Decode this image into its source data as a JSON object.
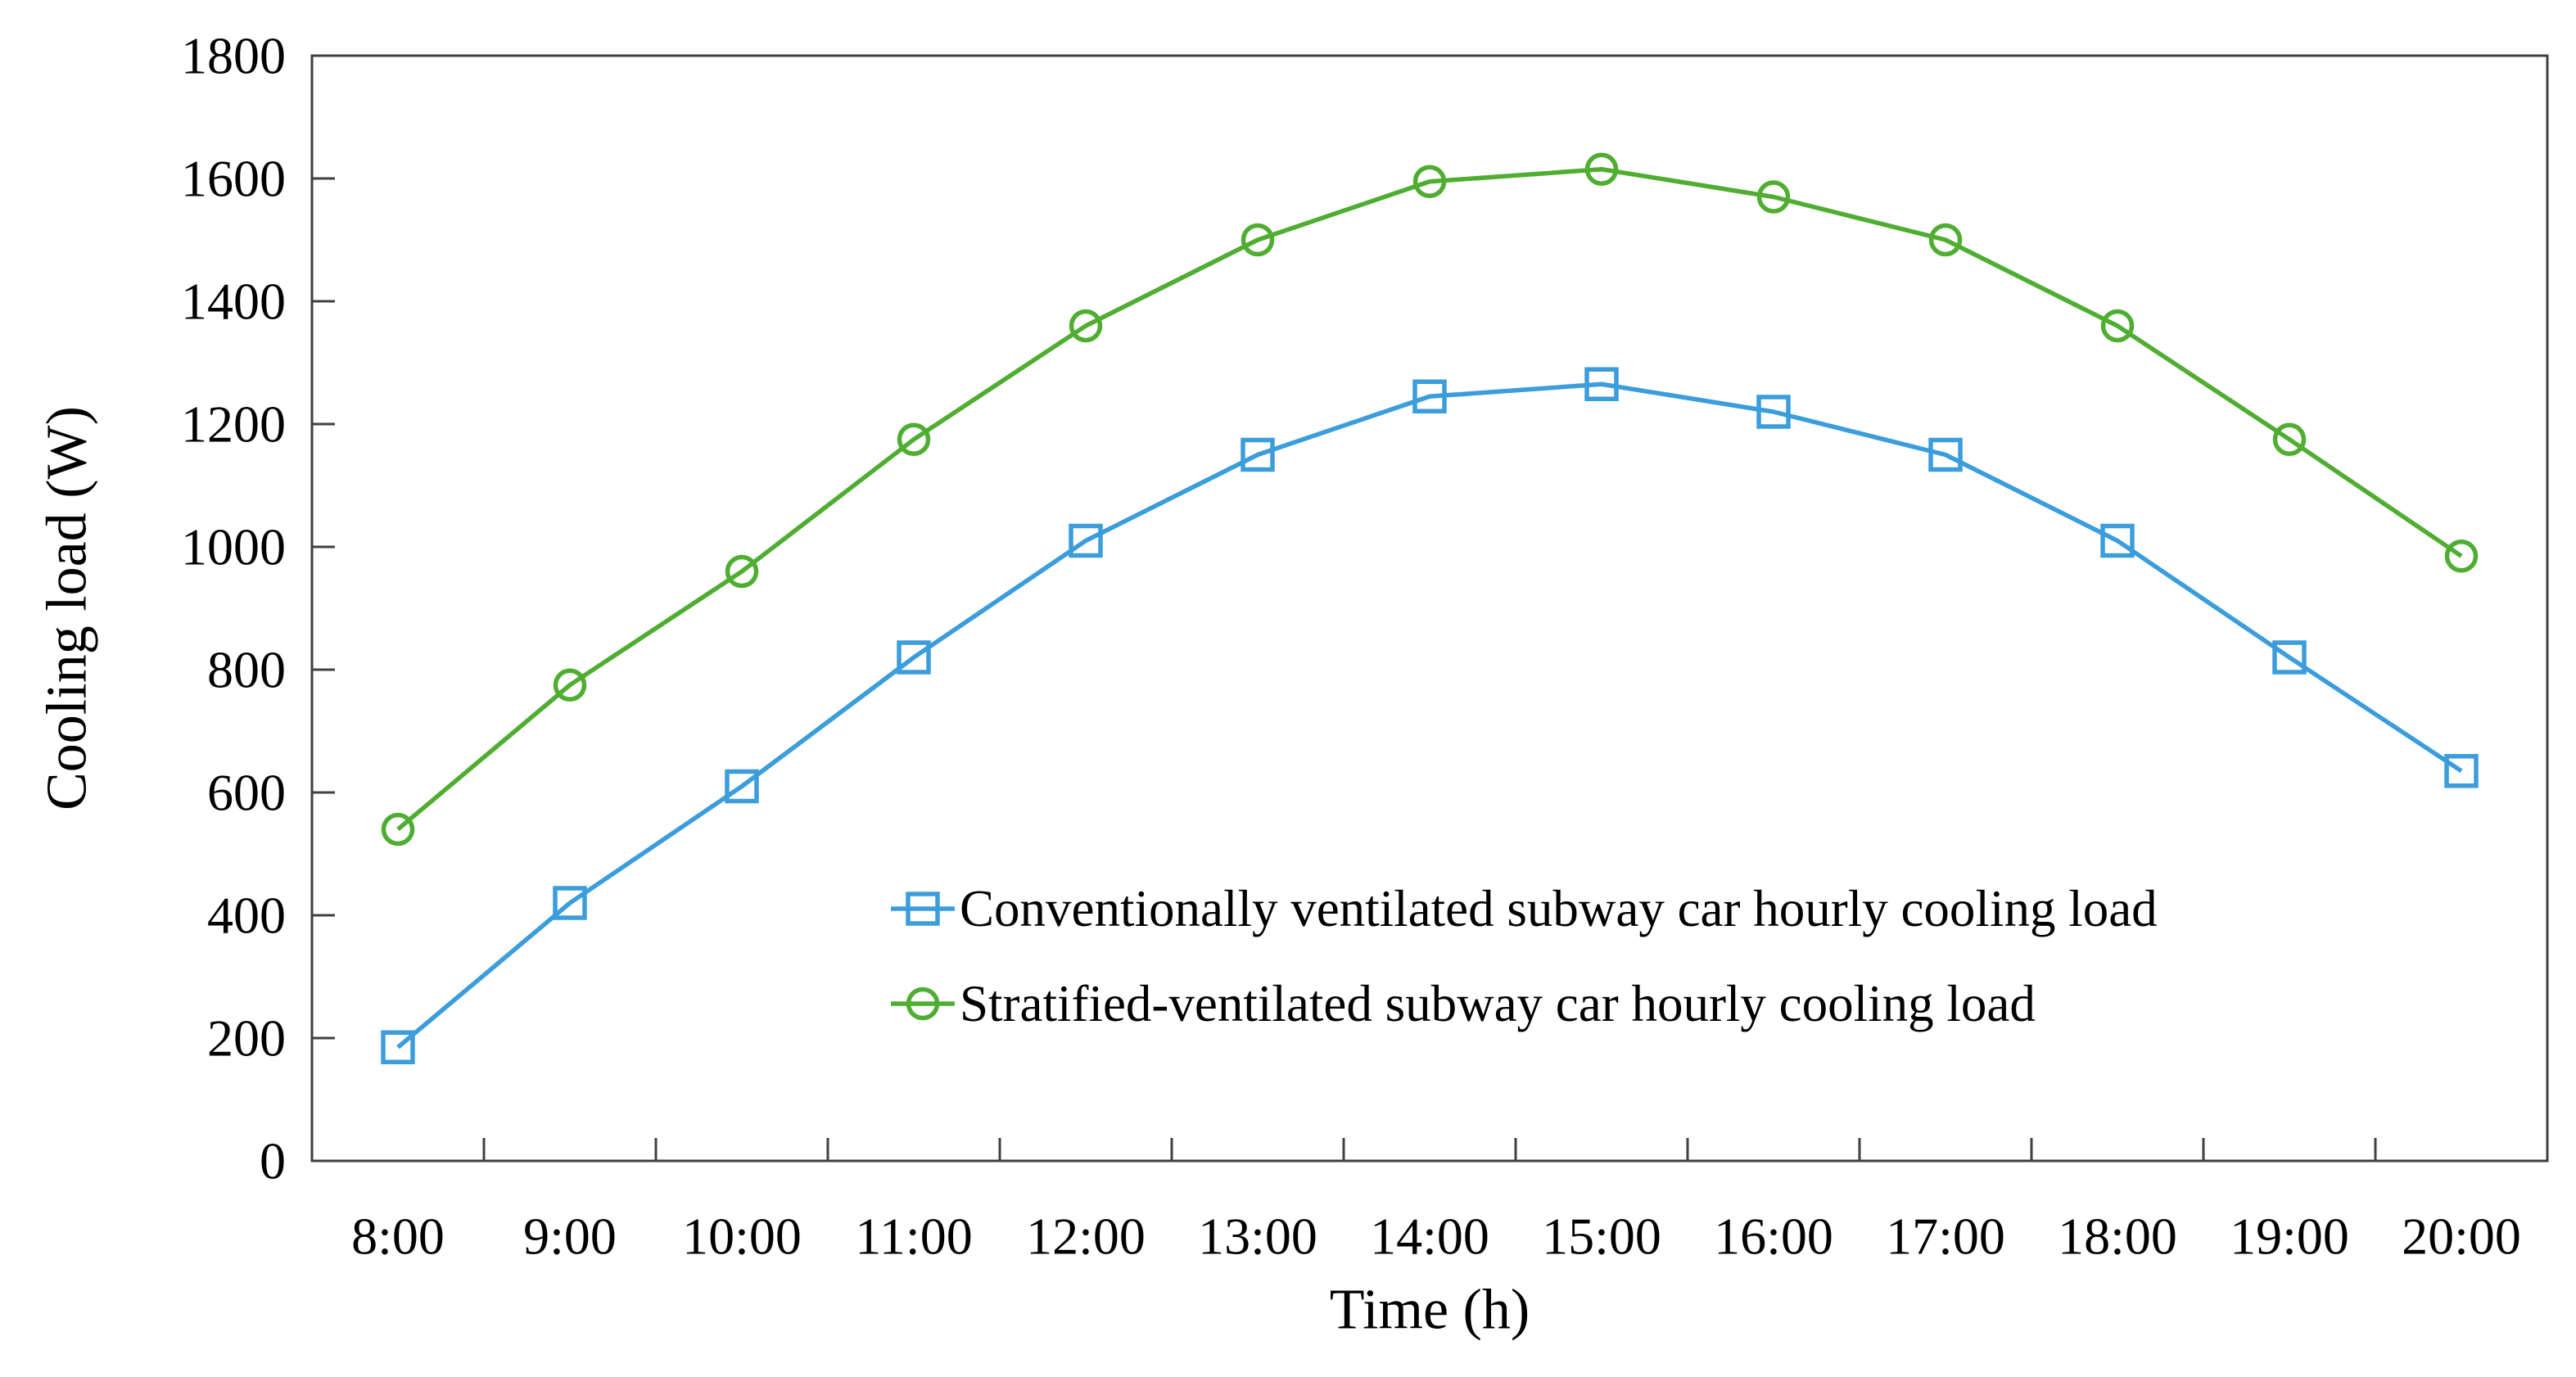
{
  "chart_data": {
    "type": "line",
    "title": "",
    "xlabel": "Time (h)",
    "ylabel": "Cooling load (W)",
    "x_categories": [
      "8:00",
      "9:00",
      "10:00",
      "11:00",
      "12:00",
      "13:00",
      "14:00",
      "15:00",
      "16:00",
      "17:00",
      "18:00",
      "19:00",
      "20:00"
    ],
    "y_ticks": [
      0,
      200,
      400,
      600,
      800,
      1000,
      1200,
      1400,
      1600,
      1800
    ],
    "ylim": [
      0,
      1800
    ],
    "grid": false,
    "legend_position": "inside-right-middle",
    "background_color": "#ffffff",
    "axis_color": "#404040",
    "series": [
      {
        "name": "Conventionally ventilated subway car hourly cooling load",
        "marker": "square",
        "color": "#3b9ddb",
        "values": [
          185,
          420,
          610,
          820,
          1010,
          1150,
          1245,
          1265,
          1220,
          1150,
          1010,
          820,
          635
        ]
      },
      {
        "name": "Stratified-ventilated subway car hourly cooling load",
        "marker": "circle",
        "color": "#4fae32",
        "values": [
          540,
          775,
          960,
          1175,
          1360,
          1500,
          1595,
          1615,
          1570,
          1500,
          1360,
          1175,
          985
        ]
      }
    ]
  }
}
